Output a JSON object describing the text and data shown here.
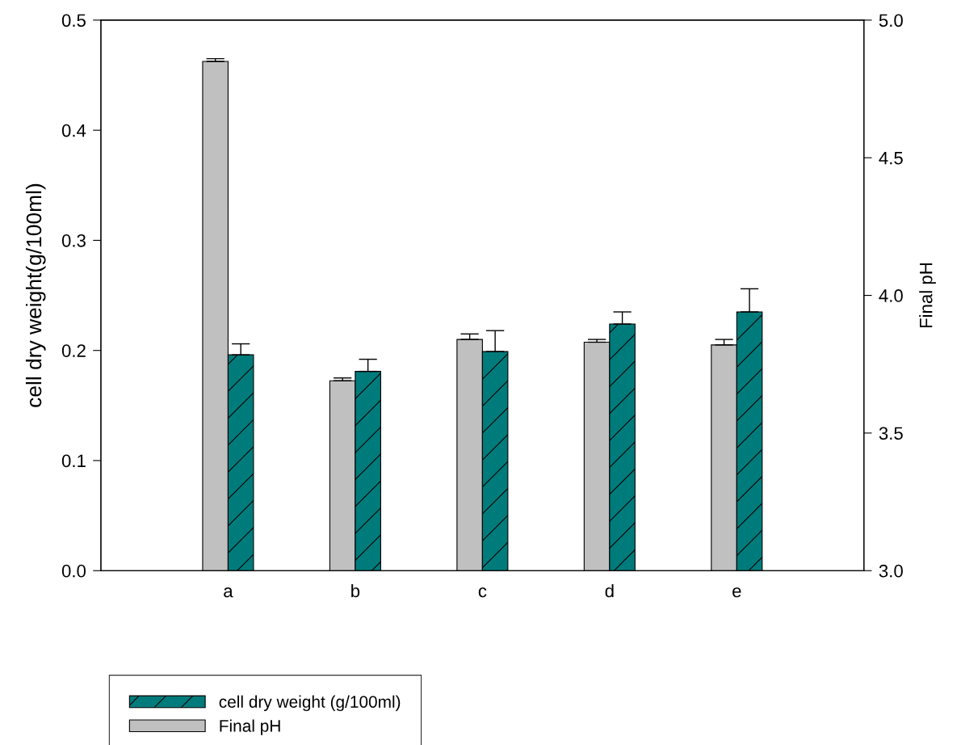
{
  "chart_data": {
    "type": "bar",
    "categories": [
      "a",
      "b",
      "c",
      "d",
      "e"
    ],
    "ylabel": "cell dry weight(g/100ml)",
    "y2label": "Final pH",
    "ylim": [
      0,
      0.5
    ],
    "yticks": [
      {
        "value": 0,
        "label": "0.0"
      },
      0.1,
      0.2,
      0.3,
      0.4,
      0.5
    ],
    "y2lim": [
      3.0,
      5.0
    ],
    "y2ticks": [
      {
        "value": 3,
        "label": "3.0"
      },
      3.5,
      {
        "value": 4,
        "label": "4.0"
      },
      4.5,
      {
        "value": 5,
        "label": "5.0"
      }
    ],
    "legend": "bottom left",
    "grid": false,
    "series": [
      {
        "name": "cell dry weight (g/100ml)",
        "color": "#007b7b",
        "values": [
          0.196,
          0.181,
          0.199,
          0.224,
          0.235
        ],
        "errors": [
          [
            0.196,
            0.206
          ],
          [
            0.181,
            0.192
          ],
          [
            0.199,
            0.218
          ],
          [
            0.224,
            0.235
          ],
          [
            0.235,
            0.256
          ]
        ]
      },
      {
        "name": "Final pH",
        "color": "#c0c0c0",
        "axis": "y2",
        "values": [
          4.85,
          3.69,
          3.84,
          3.83,
          3.82
        ],
        "errors": [
          [
            4.85,
            4.86
          ],
          [
            3.69,
            3.7
          ],
          [
            3.84,
            3.86
          ],
          [
            3.83,
            3.84
          ],
          [
            3.82,
            3.84
          ]
        ]
      }
    ]
  }
}
